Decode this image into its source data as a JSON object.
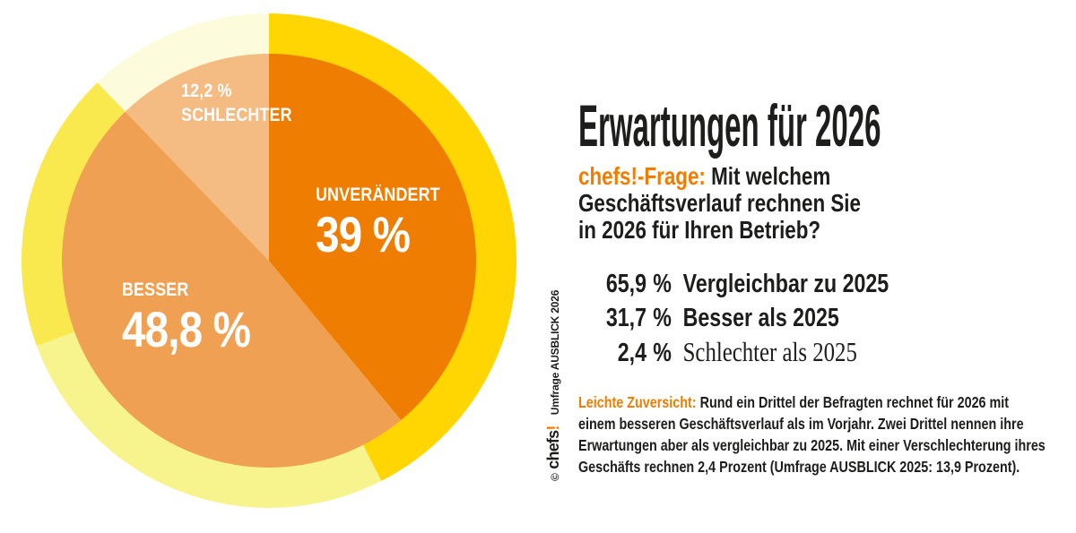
{
  "accent_color": "#F07D00",
  "chart_data": {
    "type": "pie",
    "label_color": "#FFFFFF",
    "slices": [
      {
        "label": "UNVERÄNDERT",
        "display_value": "39 %",
        "value": 39.0,
        "color": "#EE7D01"
      },
      {
        "label": "BESSER",
        "display_value": "48,8 %",
        "value": 48.8,
        "color": "#F0A052"
      },
      {
        "label": "SCHLECHTER",
        "display_value": "12,2 %",
        "value": 12.2,
        "color": "#F4BB82"
      }
    ],
    "outer_ring": {
      "slices": [
        {
          "value": 42.5,
          "color": "#FFD502"
        },
        {
          "value": 26.9,
          "color": "#F8F48D"
        },
        {
          "value": 18.4,
          "color": "#FAE94E"
        },
        {
          "value": 12.2,
          "color": "#FCFBDB"
        }
      ]
    }
  },
  "panel": {
    "title": "Erwartungen für 2026",
    "question": {
      "prefix": "chefs!-Frage:",
      "lines": [
        "Mit welchem",
        "Geschäftsverlauf rechnen Sie",
        "in 2026 für Ihren Betrieb?"
      ]
    },
    "stats": [
      {
        "value": "65,9",
        "unit": "%",
        "label": "Vergleichbar zu 2025"
      },
      {
        "value": "31,7",
        "unit": "%",
        "label": "Besser als 2025"
      },
      {
        "value": "2,4",
        "unit": "%",
        "label": "Schlechter als 2025"
      }
    ],
    "note": {
      "prefix": "Leichte Zuversicht:",
      "lines": [
        "Rund ein Drittel der Befragten rechnet für 2026 mit",
        "einem besseren Geschäftsverlauf als im Vorjahr. Zwei Drittel nennen ihre",
        "Erwartungen aber als vergleichbar zu 2025. Mit einer Verschlechterung ihres",
        "Geschäfts rechnen 2,4 Prozent (Umfrage AUSBLICK 2025: 13,9 Prozent)."
      ]
    }
  },
  "credit": {
    "copyright": "©",
    "brand": "chefs",
    "brand_mark": "!",
    "text": "Umfrage AUSBLICK 2026"
  }
}
